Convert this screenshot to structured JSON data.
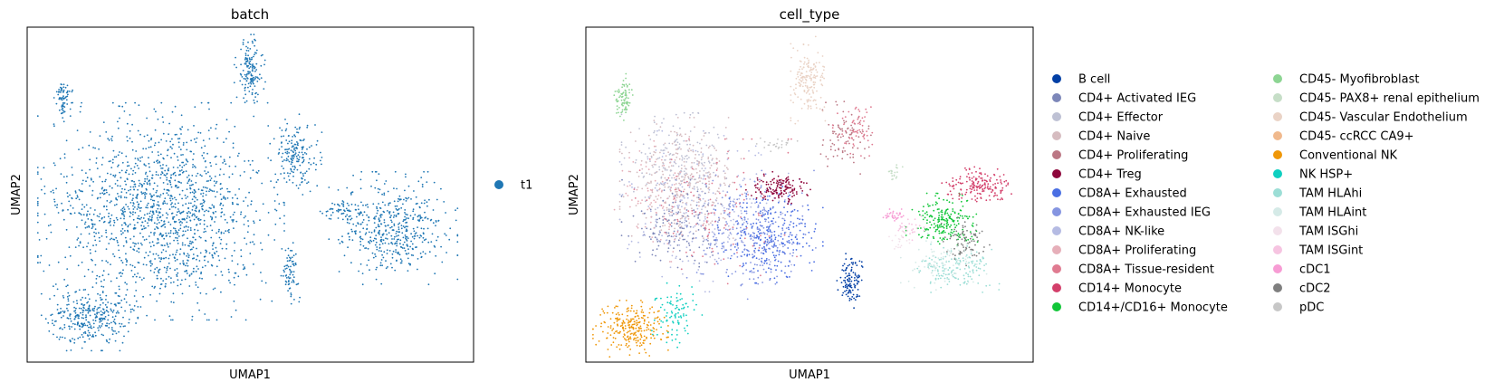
{
  "chart_data": [
    {
      "type": "scatter",
      "title": "batch",
      "xlabel": "UMAP1",
      "ylabel": "UMAP2",
      "grid": false,
      "ticks": false,
      "legend_position": "right",
      "legend": [
        {
          "label": "t1",
          "color": "#1f77b4"
        }
      ],
      "clusters": [
        {
          "label": "t1",
          "color": "#1f77b4",
          "cx": 0.3,
          "cy": 0.55,
          "rx": 0.23,
          "ry": 0.27,
          "n": 1500
        },
        {
          "label": "t1",
          "color": "#1f77b4",
          "cx": 0.14,
          "cy": 0.87,
          "rx": 0.09,
          "ry": 0.08,
          "n": 320
        },
        {
          "label": "t1",
          "color": "#1f77b4",
          "cx": 0.82,
          "cy": 0.6,
          "rx": 0.12,
          "ry": 0.14,
          "n": 500
        },
        {
          "label": "t1",
          "color": "#1f77b4",
          "cx": 0.6,
          "cy": 0.38,
          "rx": 0.05,
          "ry": 0.1,
          "n": 180
        },
        {
          "label": "t1",
          "color": "#1f77b4",
          "cx": 0.5,
          "cy": 0.13,
          "rx": 0.03,
          "ry": 0.09,
          "n": 150
        },
        {
          "label": "t1",
          "color": "#1f77b4",
          "cx": 0.08,
          "cy": 0.21,
          "rx": 0.018,
          "ry": 0.06,
          "n": 70
        },
        {
          "label": "t1",
          "color": "#1f77b4",
          "cx": 0.59,
          "cy": 0.73,
          "rx": 0.02,
          "ry": 0.08,
          "n": 70
        },
        {
          "label": "t1",
          "color": "#1f77b4",
          "cx": 0.7,
          "cy": 0.55,
          "rx": 0.04,
          "ry": 0.02,
          "n": 40
        }
      ]
    },
    {
      "type": "scatter",
      "title": "cell_type",
      "xlabel": "UMAP1",
      "ylabel": "UMAP2",
      "grid": false,
      "ticks": false,
      "legend_position": "right",
      "legend": [
        {
          "label": "B cell",
          "color": "#023fa5"
        },
        {
          "label": "CD4+ Activated IEG",
          "color": "#7d87b9"
        },
        {
          "label": "CD4+ Effector",
          "color": "#bec1d4"
        },
        {
          "label": "CD4+ Naive",
          "color": "#d6bcc0"
        },
        {
          "label": "CD4+ Proliferating",
          "color": "#bb7784"
        },
        {
          "label": "CD4+ Treg",
          "color": "#8e063b"
        },
        {
          "label": "CD8A+ Exhausted",
          "color": "#4a6fe3"
        },
        {
          "label": "CD8A+ Exhausted IEG",
          "color": "#8595e1"
        },
        {
          "label": "CD8A+ NK-like",
          "color": "#b5bbe3"
        },
        {
          "label": "CD8A+ Proliferating",
          "color": "#e6afb9"
        },
        {
          "label": "CD8A+ Tissue-resident",
          "color": "#e07b91"
        },
        {
          "label": "CD14+ Monocyte",
          "color": "#d33f6a"
        },
        {
          "label": "CD14+/CD16+ Monocyte",
          "color": "#11c638"
        },
        {
          "label": "CD45- Myofibroblast",
          "color": "#8dd593"
        },
        {
          "label": "CD45- PAX8+ renal epithelium",
          "color": "#c6dec7"
        },
        {
          "label": "CD45- Vascular Endothelium",
          "color": "#ead3c6"
        },
        {
          "label": "CD45- ccRCC CA9+",
          "color": "#f0b98d"
        },
        {
          "label": "Conventional NK",
          "color": "#ef9708"
        },
        {
          "label": "NK HSP+",
          "color": "#0fcfc0"
        },
        {
          "label": "TAM HLAhi",
          "color": "#9cded6"
        },
        {
          "label": "TAM HLAint",
          "color": "#d5eae7"
        },
        {
          "label": "TAM ISGhi",
          "color": "#f3e1eb"
        },
        {
          "label": "TAM ISGint",
          "color": "#f6c4e1"
        },
        {
          "label": "cDC1",
          "color": "#f79cd4"
        },
        {
          "label": "cDC2",
          "color": "#7f7f7f"
        },
        {
          "label": "pDC",
          "color": "#c7c7c7"
        }
      ],
      "clusters": [
        {
          "label": "CD4+ Naive",
          "color": "#d6bcc0",
          "cx": 0.22,
          "cy": 0.45,
          "rx": 0.12,
          "ry": 0.15,
          "n": 320
        },
        {
          "label": "CD4+ Effector",
          "color": "#bec1d4",
          "cx": 0.2,
          "cy": 0.4,
          "rx": 0.1,
          "ry": 0.12,
          "n": 180
        },
        {
          "label": "CD4+ Activated IEG",
          "color": "#7d87b9",
          "cx": 0.2,
          "cy": 0.6,
          "rx": 0.1,
          "ry": 0.12,
          "n": 160
        },
        {
          "label": "CD8A+ NK-like",
          "color": "#b5bbe3",
          "cx": 0.28,
          "cy": 0.55,
          "rx": 0.17,
          "ry": 0.2,
          "n": 260
        },
        {
          "label": "CD8A+ Exhausted",
          "color": "#4a6fe3",
          "cx": 0.41,
          "cy": 0.62,
          "rx": 0.1,
          "ry": 0.12,
          "n": 300
        },
        {
          "label": "CD8A+ Exhausted IEG",
          "color": "#8595e1",
          "cx": 0.37,
          "cy": 0.62,
          "rx": 0.12,
          "ry": 0.16,
          "n": 220
        },
        {
          "label": "CD8A+ Proliferating",
          "color": "#e6afb9",
          "cx": 0.16,
          "cy": 0.52,
          "rx": 0.08,
          "ry": 0.15,
          "n": 90
        },
        {
          "label": "CD8A+ Tissue-resident",
          "color": "#e07b91",
          "cx": 0.3,
          "cy": 0.55,
          "rx": 0.16,
          "ry": 0.18,
          "n": 120
        },
        {
          "label": "CD4+ Treg",
          "color": "#8e063b",
          "cx": 0.43,
          "cy": 0.48,
          "rx": 0.06,
          "ry": 0.04,
          "n": 140
        },
        {
          "label": "CD4+ Proliferating",
          "color": "#bb7784",
          "cx": 0.58,
          "cy": 0.33,
          "rx": 0.05,
          "ry": 0.09,
          "n": 90
        },
        {
          "label": "CD8A+ Tissue-resident",
          "color": "#e07b91",
          "cx": 0.6,
          "cy": 0.3,
          "rx": 0.04,
          "ry": 0.07,
          "n": 60
        },
        {
          "label": "CD45- Vascular Endothelium",
          "color": "#ead3c6",
          "cx": 0.5,
          "cy": 0.16,
          "rx": 0.035,
          "ry": 0.11,
          "n": 170
        },
        {
          "label": "CD45- Myofibroblast",
          "color": "#8dd593",
          "cx": 0.085,
          "cy": 0.21,
          "rx": 0.018,
          "ry": 0.06,
          "n": 80
        },
        {
          "label": "Conventional NK",
          "color": "#ef9708",
          "cx": 0.1,
          "cy": 0.9,
          "rx": 0.07,
          "ry": 0.07,
          "n": 260
        },
        {
          "label": "NK HSP+",
          "color": "#0fcfc0",
          "cx": 0.2,
          "cy": 0.86,
          "rx": 0.05,
          "ry": 0.08,
          "n": 90
        },
        {
          "label": "B cell",
          "color": "#023fa5",
          "cx": 0.59,
          "cy": 0.76,
          "rx": 0.025,
          "ry": 0.07,
          "n": 110
        },
        {
          "label": "CD14+/CD16+ Monocyte",
          "color": "#11c638",
          "cx": 0.8,
          "cy": 0.58,
          "rx": 0.07,
          "ry": 0.07,
          "n": 200
        },
        {
          "label": "CD14+ Monocyte",
          "color": "#d33f6a",
          "cx": 0.88,
          "cy": 0.47,
          "rx": 0.07,
          "ry": 0.05,
          "n": 170
        },
        {
          "label": "TAM HLAhi",
          "color": "#9cded6",
          "cx": 0.83,
          "cy": 0.72,
          "rx": 0.08,
          "ry": 0.06,
          "n": 150
        },
        {
          "label": "cDC2",
          "color": "#7f7f7f",
          "cx": 0.85,
          "cy": 0.64,
          "rx": 0.05,
          "ry": 0.06,
          "n": 80
        },
        {
          "label": "TAM HLAint",
          "color": "#d5eae7",
          "cx": 0.8,
          "cy": 0.7,
          "rx": 0.08,
          "ry": 0.07,
          "n": 80
        },
        {
          "label": "cDC1",
          "color": "#f79cd4",
          "cx": 0.69,
          "cy": 0.56,
          "rx": 0.025,
          "ry": 0.015,
          "n": 35
        },
        {
          "label": "TAM ISGint",
          "color": "#f6c4e1",
          "cx": 0.72,
          "cy": 0.6,
          "rx": 0.03,
          "ry": 0.03,
          "n": 30
        },
        {
          "label": "pDC",
          "color": "#c7c7c7",
          "cx": 0.43,
          "cy": 0.35,
          "rx": 0.04,
          "ry": 0.02,
          "n": 25
        },
        {
          "label": "CD45- PAX8+ renal epithelium",
          "color": "#c6dec7",
          "cx": 0.69,
          "cy": 0.43,
          "rx": 0.015,
          "ry": 0.03,
          "n": 20
        },
        {
          "label": "TAM ISGhi",
          "color": "#f3e1eb",
          "cx": 0.7,
          "cy": 0.64,
          "rx": 0.03,
          "ry": 0.03,
          "n": 20
        }
      ]
    }
  ]
}
